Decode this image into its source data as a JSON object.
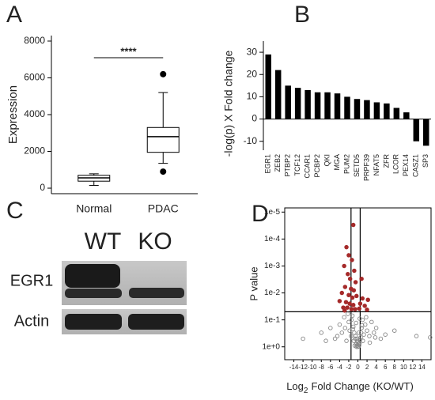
{
  "chart_data": [
    {
      "type": "box",
      "label": "A",
      "ylabel": "Expression",
      "annotation": "****",
      "categories": [
        "Normal",
        "PDAC"
      ],
      "boxes": [
        {
          "whisker_low": 150,
          "q1": 380,
          "median": 560,
          "q3": 700,
          "whisker_high": 780,
          "outliers": []
        },
        {
          "whisker_low": 1350,
          "q1": 1950,
          "median": 2800,
          "q3": 3300,
          "whisker_high": 5200,
          "outliers": [
            6200,
            900
          ]
        }
      ],
      "color": "#ffffff",
      "ylim": [
        -300,
        8300
      ],
      "yticks": [
        0,
        2000,
        4000,
        6000,
        8000
      ]
    },
    {
      "type": "bar",
      "label": "B",
      "ylabel": "-log(p) X Fold change",
      "categories": [
        "EGR1",
        "ZEB2",
        "PTBP2",
        "TCF12",
        "CCAR1",
        "PCBP2",
        "QKI",
        "MGA",
        "PUM2",
        "SETD5",
        "PRPF39",
        "NFAT5",
        "ZFR",
        "LCOR",
        "PEX14",
        "CASZ1",
        "SP3"
      ],
      "values": [
        29,
        22,
        15,
        14,
        13,
        12,
        12,
        11.5,
        10,
        9,
        8.5,
        7.5,
        7,
        5,
        3,
        -10,
        -12
      ],
      "color": "#000000",
      "ylim": [
        -14,
        35
      ],
      "yticks": [
        -10,
        0,
        10,
        20,
        30
      ]
    },
    {
      "type": "scatter",
      "label": "D",
      "ylabel": "P value",
      "xlabel": [
        "Log",
        "2",
        "Fold Change (KO/WT)"
      ],
      "log_y": true,
      "xlim": [
        -16,
        16
      ],
      "ylim": [
        3,
        7e-06
      ],
      "xticks": [
        -14,
        -12,
        -10,
        -8,
        -6,
        -4,
        -2,
        0,
        2,
        4,
        6,
        8,
        10,
        12,
        14
      ],
      "yticks": [
        {
          "value": 1e-05,
          "label": "1e-5"
        },
        {
          "value": 0.0001,
          "label": "1e-4"
        },
        {
          "value": 0.001,
          "label": "1e-3"
        },
        {
          "value": 0.01,
          "label": "1e-2"
        },
        {
          "value": 0.1,
          "label": "1e-1"
        },
        {
          "value": 1,
          "label": "1e+0"
        }
      ],
      "vlines": [
        -1.5,
        0.5
      ],
      "hline": 0.05,
      "series": [
        {
          "color": "#a52a2a",
          "filled": true,
          "x": [
            -1.0,
            -2.5,
            -2.0,
            -1.3,
            -0.8,
            -3.0,
            -2.2,
            -1.7,
            -0.5,
            0.8,
            -2.8,
            -1.5,
            -0.9,
            -3.5,
            -2.0,
            -1.2,
            -0.3,
            1.0,
            2.2,
            -4.0,
            -2.6,
            -1.8,
            -1.0,
            0.5,
            1.5,
            -3.2,
            -2.3,
            -1.4,
            -0.6,
            0.3,
            2.0,
            -2.9
          ],
          "values": [
            3e-05,
            0.0002,
            0.0004,
            0.0006,
            0.0015,
            0.001,
            0.002,
            0.003,
            0.004,
            0.003,
            0.006,
            0.007,
            0.008,
            0.01,
            0.012,
            0.015,
            0.013,
            0.016,
            0.018,
            0.02,
            0.022,
            0.025,
            0.028,
            0.025,
            0.03,
            0.035,
            0.035,
            0.04,
            0.04,
            0.038,
            0.042,
            0.045
          ]
        },
        {
          "color": "#888888",
          "filled": false,
          "x": [
            -12,
            15.8,
            12.8,
            -8,
            -6,
            -5,
            -4,
            -3.5,
            -3,
            -2.5,
            -2,
            -1.8,
            -1.5,
            -1.2,
            -1,
            -0.8,
            -0.6,
            -0.4,
            -0.2,
            0,
            0.2,
            0.4,
            0.6,
            0.8,
            1,
            1.3,
            1.6,
            2,
            2.5,
            3,
            3.5,
            4,
            5,
            6,
            8,
            -7,
            -4.5,
            -2.8,
            -2.2,
            -1.4,
            -0.9,
            -0.5,
            -0.1,
            0.3,
            0.7,
            1.1,
            1.8,
            2.6,
            3.8,
            -0.3,
            0.1,
            -0.7,
            0.5,
            -1.1,
            0.9,
            -0.2,
            0,
            0.2,
            -0.4,
            0.4
          ],
          "values": [
            0.5,
            0.45,
            0.4,
            0.3,
            0.2,
            0.5,
            0.15,
            0.3,
            0.08,
            0.6,
            0.12,
            0.25,
            0.4,
            0.07,
            0.18,
            0.3,
            0.5,
            0.8,
            0.9,
            1,
            0.95,
            0.7,
            0.45,
            0.2,
            0.1,
            0.35,
            0.15,
            0.25,
            0.4,
            0.12,
            0.3,
            0.2,
            0.5,
            0.35,
            0.25,
            0.6,
            0.4,
            0.2,
            0.06,
            0.1,
            0.6,
            0.4,
            0.6,
            0.85,
            0.3,
            0.6,
            0.08,
            0.7,
            0.45,
            1,
            0.75,
            0.9,
            0.55,
            0.22,
            0.16,
            0.5,
            0.65,
            0.3,
            0.13,
            0.09
          ]
        }
      ]
    }
  ],
  "blot": {
    "label": "C",
    "lanes": [
      "WT",
      "KO"
    ],
    "rows": [
      "EGR1",
      "Actin"
    ]
  }
}
